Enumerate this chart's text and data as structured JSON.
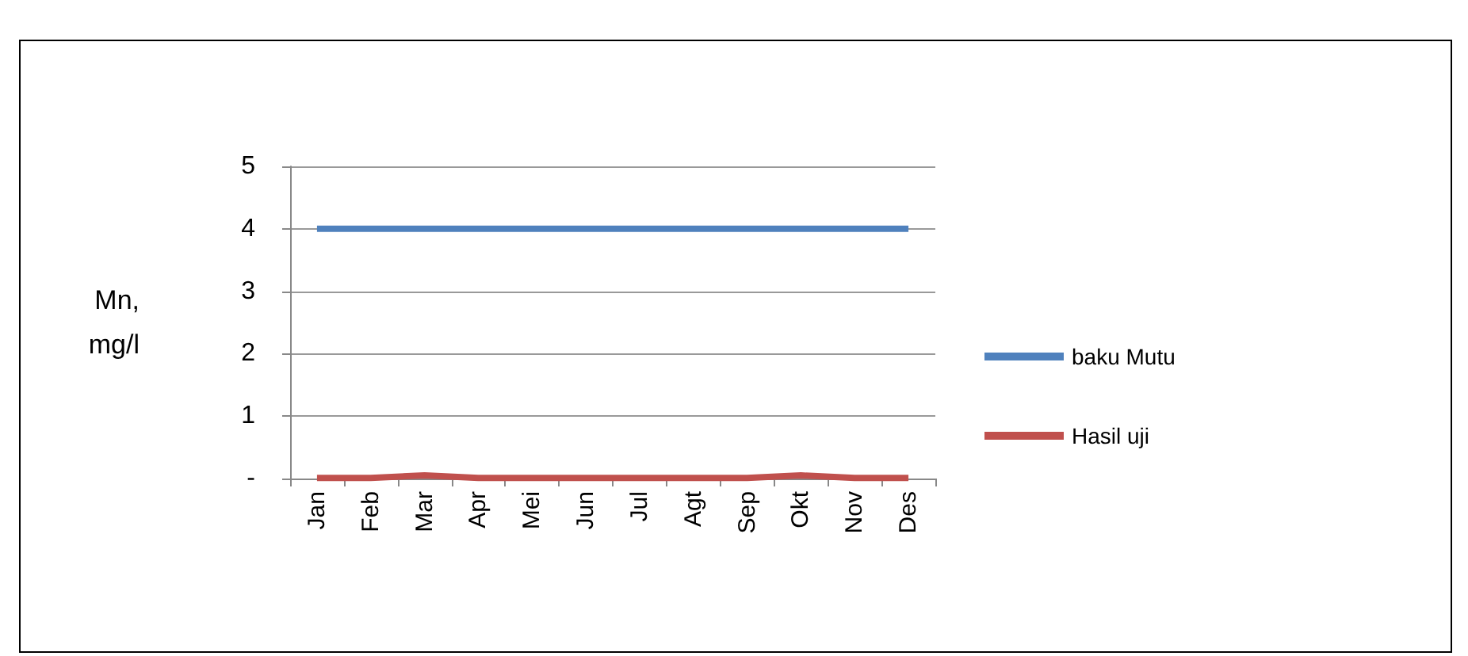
{
  "chart_data": {
    "type": "line",
    "ylabel": "Mn, mg/l",
    "categories": [
      "Jan",
      "Feb",
      "Mar",
      "Apr",
      "Mei",
      "Jun",
      "Jul",
      "Agt",
      "Sep",
      "Okt",
      "Nov",
      "Des"
    ],
    "series": [
      {
        "name": "baku Mutu",
        "color": "#4f81bd",
        "values": [
          4,
          4,
          4,
          4,
          4,
          4,
          4,
          4,
          4,
          4,
          4,
          4
        ]
      },
      {
        "name": "Hasil uji",
        "color": "#c0504d",
        "values": [
          0.01,
          0.01,
          0.05,
          0.01,
          0.01,
          0.01,
          0.01,
          0.01,
          0.01,
          0.05,
          0.01,
          0.01
        ]
      }
    ],
    "ylim": [
      0,
      5
    ],
    "yticks": [
      {
        "value": 0,
        "label": "-"
      },
      1,
      2,
      3,
      4,
      5
    ],
    "grid": "y",
    "legend": "right",
    "marker": "none"
  }
}
